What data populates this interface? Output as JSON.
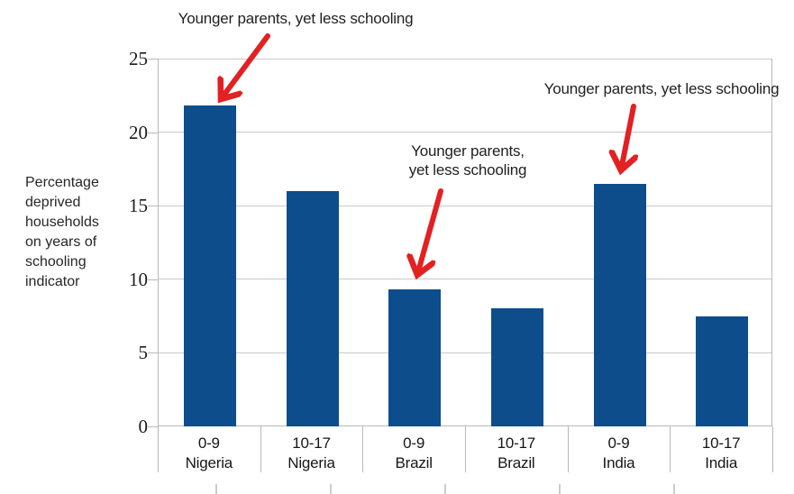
{
  "colors": {
    "bar": "#0d4d8c",
    "arrow": "#e32022",
    "grid": "#c9c9c9",
    "axis": "#b9b9b9"
  },
  "chart_data": {
    "type": "bar",
    "title": "",
    "ylabel_lines": [
      "Percentage",
      "deprived",
      "households",
      "on years of",
      "schooling",
      "indicator"
    ],
    "xlabel": "",
    "categories": [
      {
        "line1": "0-9",
        "line2": "Nigeria"
      },
      {
        "line1": "10-17",
        "line2": "Nigeria"
      },
      {
        "line1": "0-9",
        "line2": "Brazil"
      },
      {
        "line1": "10-17",
        "line2": "Brazil"
      },
      {
        "line1": "0-9",
        "line2": "India"
      },
      {
        "line1": "10-17",
        "line2": "India"
      }
    ],
    "values": [
      21.8,
      16,
      9.3,
      8,
      16.5,
      7.5
    ],
    "y_ticks": [
      0,
      5,
      10,
      15,
      20,
      25
    ],
    "ylim": [
      0,
      25
    ],
    "grid": true,
    "legend": "none",
    "annotations": [
      {
        "lines": [
          "Younger parents, yet less schooling"
        ],
        "target": "0-9 Nigeria bar"
      },
      {
        "lines": [
          "Younger parents,",
          "yet less schooling"
        ],
        "target": "0-9 Brazil bar"
      },
      {
        "lines": [
          "Younger parents, yet less schooling"
        ],
        "target": "0-9 India bar"
      }
    ]
  }
}
